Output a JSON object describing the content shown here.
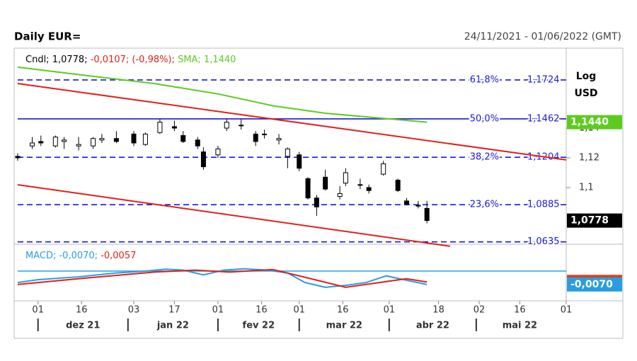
{
  "chart_data": {
    "type": "candlestick",
    "title": "Daily EUR=",
    "subtitle": "24/11/2021 - 01/06/2022 (GMT)",
    "axis_label": [
      "Log",
      "USD"
    ],
    "xlim": [
      "2021-11-24",
      "2022-06-01"
    ],
    "xticks": [
      {
        "value": "2021-12-01",
        "label": "01"
      },
      {
        "value": "2021-12-16",
        "label": "16"
      },
      {
        "value": "2022-01-03",
        "label": "03"
      },
      {
        "value": "2022-01-17",
        "label": "17"
      },
      {
        "value": "2022-02-01",
        "label": "01"
      },
      {
        "value": "2022-02-16",
        "label": "16"
      },
      {
        "value": "2022-03-01",
        "label": "01"
      },
      {
        "value": "2022-03-16",
        "label": "16"
      },
      {
        "value": "2022-04-01",
        "label": "01"
      },
      {
        "value": "2022-04-18",
        "label": "18"
      },
      {
        "value": "2022-05-02",
        "label": "02"
      },
      {
        "value": "2022-05-16",
        "label": "16"
      },
      {
        "value": "2022-06-01",
        "label": "01"
      }
    ],
    "months": [
      {
        "value": "2021-12-01",
        "label": "dez 21"
      },
      {
        "value": "2022-01-01",
        "label": "jan 22"
      },
      {
        "value": "2022-02-01",
        "label": "fev 22"
      },
      {
        "value": "2022-03-01",
        "label": "mar 22"
      },
      {
        "value": "2022-04-01",
        "label": "abr 22"
      },
      {
        "value": "2022-05-01",
        "label": "mai 22"
      }
    ],
    "ylim": [
      1.0619,
      1.1938
    ],
    "yticks": [
      {
        "value": 1.1,
        "label": "1,1"
      },
      {
        "value": 1.12,
        "label": "1,12"
      },
      {
        "value": 1.14,
        "label": "1,14"
      }
    ],
    "readout": [
      {
        "text": "Cndl; ",
        "color": "#000"
      },
      {
        "text": "1,0778; ",
        "color": "#000"
      },
      {
        "text": "-0,0107; ",
        "color": "#e0201a"
      },
      {
        "text": "(-0,98%); ",
        "color": "#e0201a"
      },
      {
        "text": "SMA; ",
        "color": "#5ccb1f"
      },
      {
        "text": "1,1440",
        "color": "#5ccb1f"
      }
    ],
    "candles": {
      "color": "#000",
      "x": [
        "2021-11-24",
        "2021-11-29",
        "2021-12-02",
        "2021-12-07",
        "2021-12-10",
        "2021-12-15",
        "2021-12-20",
        "2021-12-23",
        "2021-12-28",
        "2022-01-03",
        "2022-01-07",
        "2022-01-12",
        "2022-01-17",
        "2022-01-20",
        "2022-01-25",
        "2022-01-27",
        "2022-02-01",
        "2022-02-04",
        "2022-02-09",
        "2022-02-14",
        "2022-02-17",
        "2022-02-22",
        "2022-02-25",
        "2022-03-01",
        "2022-03-04",
        "2022-03-07",
        "2022-03-10",
        "2022-03-15",
        "2022-03-17",
        "2022-03-22",
        "2022-03-25",
        "2022-03-30",
        "2022-04-04",
        "2022-04-07",
        "2022-04-11",
        "2022-04-14"
      ],
      "open": [
        1.121,
        1.128,
        1.131,
        1.128,
        1.131,
        1.128,
        1.128,
        1.132,
        1.133,
        1.136,
        1.129,
        1.137,
        1.141,
        1.135,
        1.132,
        1.124,
        1.122,
        1.14,
        1.142,
        1.136,
        1.136,
        1.132,
        1.121,
        1.122,
        1.106,
        1.093,
        1.107,
        1.094,
        1.103,
        1.102,
        1.1,
        1.109,
        1.105,
        1.091,
        1.088,
        1.086
      ],
      "high": [
        1.123,
        1.134,
        1.135,
        1.135,
        1.134,
        1.134,
        1.134,
        1.136,
        1.138,
        1.138,
        1.137,
        1.146,
        1.145,
        1.138,
        1.134,
        1.127,
        1.128,
        1.146,
        1.146,
        1.138,
        1.139,
        1.136,
        1.127,
        1.124,
        1.107,
        1.095,
        1.112,
        1.101,
        1.113,
        1.106,
        1.102,
        1.118,
        1.106,
        1.093,
        1.091,
        1.091
      ],
      "low": [
        1.118,
        1.126,
        1.128,
        1.127,
        1.126,
        1.125,
        1.126,
        1.13,
        1.13,
        1.128,
        1.128,
        1.136,
        1.138,
        1.13,
        1.126,
        1.112,
        1.12,
        1.138,
        1.139,
        1.128,
        1.133,
        1.129,
        1.113,
        1.111,
        1.092,
        1.081,
        1.098,
        1.092,
        1.101,
        1.099,
        1.096,
        1.108,
        1.097,
        1.088,
        1.086,
        1.076
      ],
      "close": [
        1.12,
        1.13,
        1.13,
        1.134,
        1.132,
        1.129,
        1.133,
        1.133,
        1.131,
        1.13,
        1.136,
        1.144,
        1.14,
        1.131,
        1.128,
        1.114,
        1.126,
        1.144,
        1.142,
        1.131,
        1.136,
        1.133,
        1.126,
        1.113,
        1.093,
        1.087,
        1.099,
        1.096,
        1.11,
        1.102,
        1.098,
        1.116,
        1.098,
        1.089,
        1.088,
        1.0778
      ]
    },
    "sma": {
      "name": "SMA",
      "color": "#5ccb1f",
      "x": [
        "2021-11-24",
        "2021-12-15",
        "2022-01-10",
        "2022-02-01",
        "2022-02-20",
        "2022-03-10",
        "2022-04-14"
      ],
      "values": [
        1.181,
        1.176,
        1.17,
        1.163,
        1.155,
        1.15,
        1.144
      ]
    },
    "trendlines": [
      {
        "color": "#e0201a",
        "x": [
          "2021-11-24",
          "2022-06-01"
        ],
        "values": [
          1.17,
          1.1186
        ]
      },
      {
        "color": "#e0201a",
        "x": [
          "2021-11-24",
          "2022-04-22"
        ],
        "values": [
          1.1019,
          1.0605
        ]
      }
    ],
    "fib": {
      "color": "#1a1ad6",
      "levels": [
        1.1724,
        1.1462,
        1.1204,
        1.0885,
        1.0635
      ],
      "value_labels": [
        "1,1724",
        "1,1462",
        "1,1204",
        "1,0885",
        "1,0635"
      ],
      "percent_labels": [
        "61,8%",
        "50,0%",
        "38,2%",
        "23,6%",
        null
      ],
      "styles": [
        "dashed",
        "solid",
        "dashed",
        "dashed",
        "dashed"
      ]
    },
    "badges": [
      {
        "value": 1.144,
        "label": "1,1440",
        "color": "#5ccb1f"
      },
      {
        "value": 1.0778,
        "label": "1,0778",
        "color": "#000"
      }
    ],
    "macd": {
      "ylim": [
        -0.0156,
        0.0141
      ],
      "levels": [
        0
      ],
      "level_color": "#3aa6ea",
      "readout": [
        {
          "text": "MACD; ",
          "color": "#2a9de0"
        },
        {
          "text": "-0,0070; ",
          "color": "#2a9de0"
        },
        {
          "text": "-0,0057",
          "color": "#e0201a"
        }
      ],
      "series": [
        {
          "name": "MACD",
          "color": "#2a9de0",
          "x": [
            "2021-11-24",
            "2021-12-01",
            "2021-12-15",
            "2021-12-28",
            "2022-01-07",
            "2022-01-14",
            "2022-01-20",
            "2022-01-27",
            "2022-02-03",
            "2022-02-10",
            "2022-02-18",
            "2022-02-25",
            "2022-03-03",
            "2022-03-10",
            "2022-03-17",
            "2022-03-24",
            "2022-03-31",
            "2022-04-06",
            "2022-04-14"
          ],
          "values": [
            -0.006,
            -0.0045,
            -0.003,
            -0.001,
            0,
            0.001,
            0.0005,
            -0.002,
            0.0005,
            0.0012,
            0.0005,
            -0.001,
            -0.006,
            -0.0085,
            -0.0075,
            -0.006,
            -0.0025,
            -0.0045,
            -0.007
          ]
        },
        {
          "name": "Signal",
          "color": "#e0201a",
          "x": [
            "2021-11-24",
            "2021-12-15",
            "2022-01-10",
            "2022-01-24",
            "2022-02-05",
            "2022-02-20",
            "2022-03-05",
            "2022-03-17",
            "2022-03-31",
            "2022-04-07",
            "2022-04-14"
          ],
          "values": [
            -0.007,
            -0.004,
            -0.0005,
            0.0005,
            -0.0005,
            0.0008,
            -0.004,
            -0.0085,
            -0.0055,
            -0.004,
            -0.0057
          ]
        }
      ],
      "badges": [
        {
          "value": -0.0057,
          "label": "-0,0057",
          "color": "#e83a10"
        },
        {
          "value": -0.007,
          "label": "-0,0070",
          "color": "#2a9de0"
        }
      ]
    }
  }
}
